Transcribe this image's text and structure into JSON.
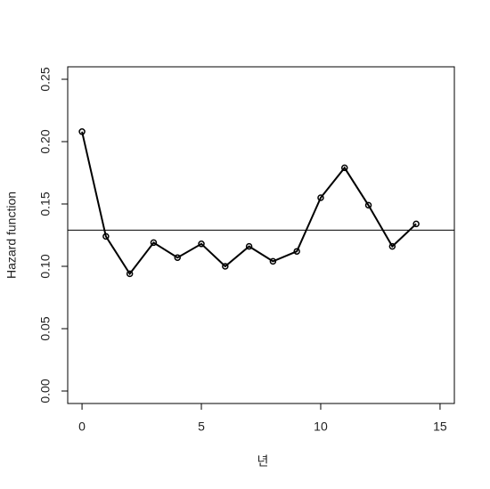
{
  "chart_data": {
    "type": "line",
    "x_label": "년",
    "y_label": "Hazard function",
    "x": [
      0,
      1,
      2,
      3,
      4,
      5,
      6,
      7,
      8,
      9,
      10,
      11,
      12,
      13,
      14
    ],
    "series": [
      {
        "color": "#000000",
        "values": [
          0.208,
          0.124,
          0.094,
          0.119,
          0.107,
          0.118,
          0.1,
          0.116,
          0.104,
          0.112,
          0.155,
          0.179,
          0.149,
          0.116,
          0.134
        ]
      }
    ],
    "hline": 0.129,
    "xlim": [
      -0.6,
      15.6
    ],
    "xticks": [
      0,
      5,
      10,
      15
    ],
    "ylim": [
      -0.01,
      0.26
    ],
    "yticks": [
      {
        "value": 0,
        "label": "0.00"
      },
      {
        "value": 0.05,
        "label": "0.05"
      },
      {
        "value": 0.1,
        "label": "0.10"
      },
      {
        "value": 0.15,
        "label": "0.15"
      },
      {
        "value": 0.2,
        "label": "0.20"
      },
      {
        "value": 0.25,
        "label": "0.25"
      }
    ]
  }
}
